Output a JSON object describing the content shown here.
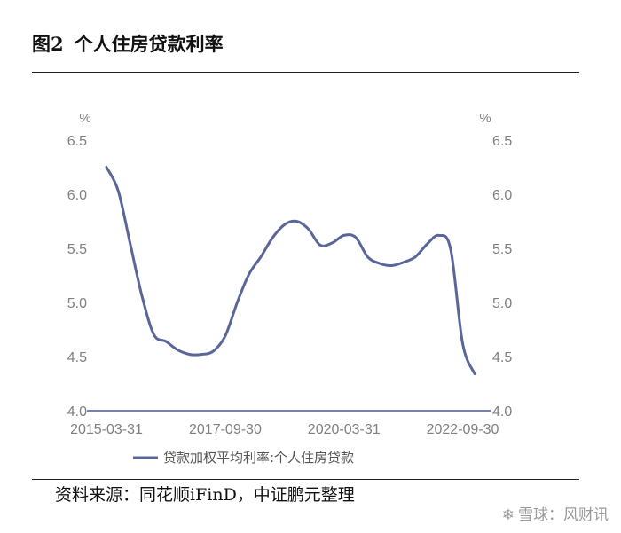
{
  "figure_title": {
    "label": "图2",
    "text": "个人住房贷款利率"
  },
  "source": "资料来源：同花顺iFinD，中证鹏元整理",
  "watermark": {
    "icon": "snowball-logo-icon",
    "text": "雪球：风财讯"
  },
  "colors": {
    "series": "#5a6599",
    "axis": "#7a81b0",
    "text": "#808080"
  },
  "chart_data": {
    "type": "line",
    "title": "",
    "ylabel_left": "%",
    "ylabel_right": "%",
    "ylim": [
      4.0,
      6.5
    ],
    "yticks": [
      4.0,
      4.5,
      5.0,
      5.5,
      6.0,
      6.5
    ],
    "ytick_labels": [
      "4.0",
      "4.5",
      "5.0",
      "5.5",
      "6.0",
      "6.5"
    ],
    "xticks": [
      "2015-03-31",
      "2017-09-30",
      "2020-03-31",
      "2022-09-30"
    ],
    "grid": false,
    "legend_position": "bottom",
    "series": [
      {
        "name": "贷款加权平均利率:个人住房贷款",
        "x": [
          "2015-03-31",
          "2015-06-30",
          "2015-09-30",
          "2015-12-31",
          "2016-03-31",
          "2016-06-30",
          "2016-09-30",
          "2016-12-31",
          "2017-03-31",
          "2017-06-30",
          "2017-09-30",
          "2017-12-31",
          "2018-03-31",
          "2018-06-30",
          "2018-09-30",
          "2018-12-31",
          "2019-03-31",
          "2019-06-30",
          "2019-09-30",
          "2019-12-31",
          "2020-03-31",
          "2020-06-30",
          "2020-09-30",
          "2020-12-31",
          "2021-03-31",
          "2021-06-30",
          "2021-09-30",
          "2021-12-31",
          "2022-03-31",
          "2022-06-30",
          "2022-09-30"
        ],
        "y": [
          6.25,
          6.03,
          5.54,
          5.05,
          4.7,
          4.64,
          4.56,
          4.52,
          4.52,
          4.55,
          4.69,
          5.0,
          5.26,
          5.42,
          5.6,
          5.72,
          5.75,
          5.68,
          5.53,
          5.55,
          5.62,
          5.6,
          5.42,
          5.36,
          5.34,
          5.37,
          5.42,
          5.54,
          5.62,
          5.49,
          4.62
        ]
      },
      {
        "name": "",
        "x": [
          "2022-09-30",
          "2022-12-31"
        ],
        "y": [
          4.62,
          4.34
        ]
      }
    ]
  }
}
